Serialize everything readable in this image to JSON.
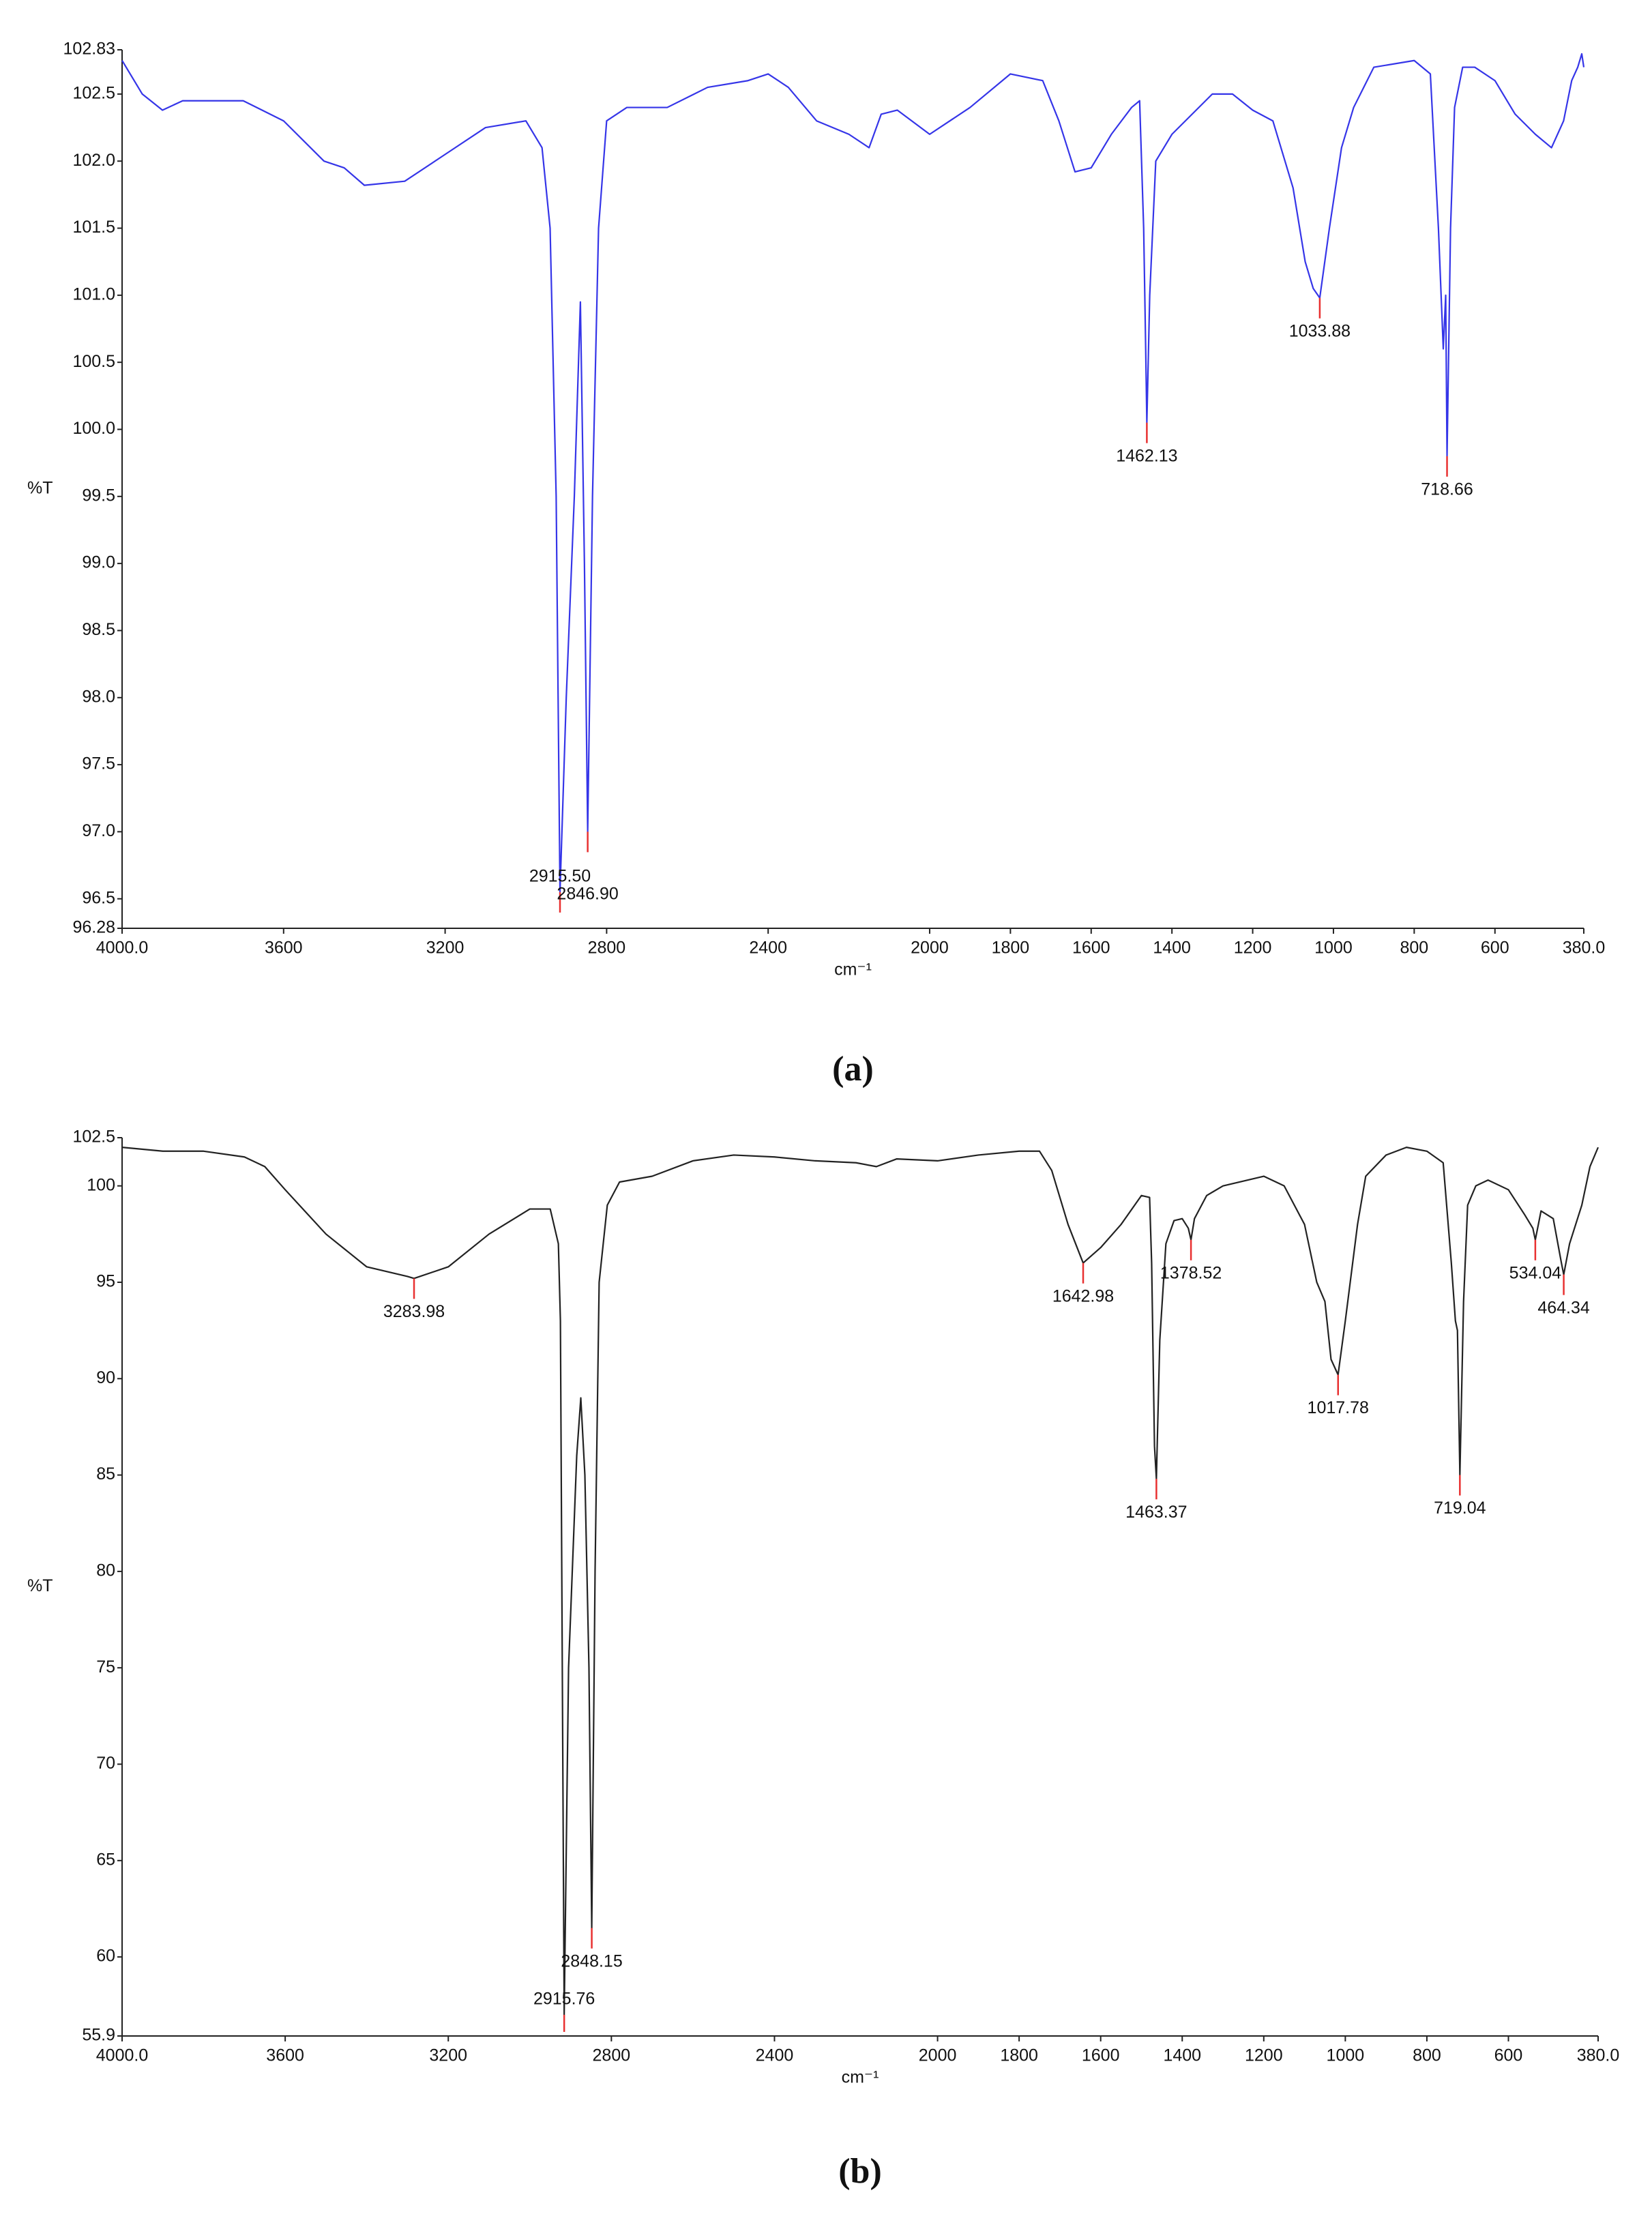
{
  "chart_data": [
    {
      "type": "line",
      "caption": "(a)",
      "x_label": "cm⁻¹",
      "y_label": "%T",
      "xlim": [
        4000,
        380
      ],
      "ylim": [
        96.28,
        102.83
      ],
      "xticks": [
        {
          "value": 4000,
          "label": "4000.0"
        },
        3600,
        3200,
        2800,
        2400,
        2000,
        1800,
        1600,
        1400,
        1200,
        1000,
        800,
        600,
        {
          "value": 380,
          "label": "380.0"
        }
      ],
      "yticks": [
        96.28,
        96.5,
        {
          "value": 97,
          "label": "97.0"
        },
        97.5,
        {
          "value": 98,
          "label": "98.0"
        },
        98.5,
        {
          "value": 99,
          "label": "99.0"
        },
        99.5,
        {
          "value": 100,
          "label": "100.0"
        },
        100.5,
        {
          "value": 101,
          "label": "101.0"
        },
        101.5,
        {
          "value": 102,
          "label": "102.0"
        },
        102.5,
        102.83
      ],
      "x": [
        4000,
        3950,
        3900,
        3850,
        3700,
        3600,
        3500,
        3450,
        3400,
        3300,
        3200,
        3100,
        3000,
        2960,
        2940,
        2925,
        2915.5,
        2900,
        2880,
        2865,
        2855,
        2846.9,
        2835,
        2820,
        2800,
        2750,
        2650,
        2550,
        2450,
        2400,
        2350,
        2280,
        2200,
        2150,
        2120,
        2080,
        2000,
        1900,
        1800,
        1720,
        1680,
        1640,
        1600,
        1550,
        1500,
        1480,
        1470,
        1465,
        1462.13,
        1455,
        1440,
        1400,
        1350,
        1300,
        1250,
        1200,
        1150,
        1100,
        1070,
        1050,
        1033.88,
        1010,
        980,
        950,
        900,
        800,
        760,
        740,
        728,
        722,
        718.66,
        710,
        700,
        680,
        650,
        600,
        550,
        500,
        460,
        430,
        410,
        395,
        385,
        380
      ],
      "series": [
        {
          "color": "#3535e8",
          "values": [
            102.75,
            102.5,
            102.38,
            102.45,
            102.45,
            102.3,
            102.0,
            101.95,
            101.82,
            101.85,
            102.05,
            102.25,
            102.3,
            102.1,
            101.5,
            99.5,
            96.55,
            98.0,
            99.5,
            100.95,
            99.0,
            97.0,
            99.5,
            101.5,
            102.3,
            102.4,
            102.4,
            102.55,
            102.6,
            102.65,
            102.55,
            102.3,
            102.2,
            102.1,
            102.35,
            102.38,
            102.2,
            102.4,
            102.65,
            102.6,
            102.3,
            101.92,
            101.95,
            102.2,
            102.4,
            102.45,
            101.5,
            100.6,
            100.05,
            101.0,
            102.0,
            102.2,
            102.35,
            102.5,
            102.5,
            102.38,
            102.3,
            101.8,
            101.25,
            101.05,
            100.98,
            101.5,
            102.1,
            102.4,
            102.7,
            102.75,
            102.65,
            101.5,
            100.6,
            101.0,
            99.8,
            101.5,
            102.4,
            102.7,
            102.7,
            102.6,
            102.35,
            102.2,
            102.1,
            102.3,
            102.6,
            102.7,
            102.8,
            102.7
          ]
        }
      ],
      "peak_color": "#e83030",
      "peaks": {
        "x": [
          2915.5,
          2846.9,
          1462.13,
          1033.88,
          718.66
        ],
        "labels": [
          "2915.50",
          "2846.90",
          "1462.13",
          "1033.88",
          "718.66"
        ]
      }
    },
    {
      "type": "line",
      "caption": "(b)",
      "x_label": "cm⁻¹",
      "y_label": "%T",
      "xlim": [
        4000,
        380
      ],
      "ylim": [
        55.9,
        102.5
      ],
      "xticks": [
        {
          "value": 4000,
          "label": "4000.0"
        },
        3600,
        3200,
        2800,
        2400,
        2000,
        1800,
        1600,
        1400,
        1200,
        1000,
        800,
        600,
        {
          "value": 380,
          "label": "380.0"
        }
      ],
      "yticks": [
        55.9,
        60,
        65,
        70,
        75,
        80,
        85,
        90,
        95,
        100,
        102.5
      ],
      "x": [
        4000,
        3900,
        3800,
        3700,
        3650,
        3600,
        3500,
        3400,
        3300,
        3283.98,
        3200,
        3100,
        3000,
        2950,
        2930,
        2925,
        2915.76,
        2905,
        2885,
        2875,
        2865,
        2855,
        2848.15,
        2840,
        2830,
        2810,
        2780,
        2700,
        2600,
        2500,
        2400,
        2300,
        2200,
        2150,
        2100,
        2000,
        1900,
        1800,
        1750,
        1720,
        1680,
        1642.98,
        1600,
        1550,
        1500,
        1480,
        1475,
        1468,
        1463.37,
        1455,
        1440,
        1420,
        1400,
        1385,
        1378.52,
        1370,
        1340,
        1300,
        1200,
        1150,
        1100,
        1070,
        1050,
        1035,
        1017.78,
        1000,
        970,
        950,
        900,
        850,
        800,
        760,
        740,
        730,
        725,
        719.04,
        710,
        700,
        680,
        650,
        600,
        560,
        540,
        534.04,
        520,
        490,
        470,
        464.34,
        450,
        420,
        400,
        380
      ],
      "series": [
        {
          "color": "#222222",
          "values": [
            102.0,
            101.8,
            101.8,
            101.5,
            101.0,
            99.8,
            97.5,
            95.8,
            95.3,
            95.2,
            95.8,
            97.5,
            98.8,
            98.8,
            97.0,
            93.0,
            57.0,
            75.0,
            86.0,
            89.0,
            85.0,
            75.0,
            61.5,
            80.0,
            95.0,
            99.0,
            100.2,
            100.5,
            101.3,
            101.6,
            101.5,
            101.3,
            101.2,
            101.0,
            101.4,
            101.3,
            101.6,
            101.8,
            101.8,
            100.8,
            98.0,
            96.0,
            96.8,
            98.0,
            99.5,
            99.4,
            96.0,
            86.5,
            84.8,
            92.0,
            97.0,
            98.2,
            98.3,
            97.8,
            97.2,
            98.3,
            99.5,
            100.0,
            100.5,
            100.0,
            98.0,
            95.0,
            94.0,
            91.0,
            90.2,
            93.0,
            98.0,
            100.5,
            101.6,
            102.0,
            101.8,
            101.2,
            96.0,
            93.0,
            92.5,
            85.0,
            94.0,
            99.0,
            100.0,
            100.3,
            99.8,
            98.5,
            97.8,
            97.2,
            98.7,
            98.3,
            96.0,
            95.4,
            97.0,
            99.0,
            101.0,
            102.0
          ]
        }
      ],
      "peak_color": "#e83030",
      "peaks": {
        "x": [
          3283.98,
          2915.76,
          2848.15,
          1642.98,
          1463.37,
          1378.52,
          1017.78,
          719.04,
          534.04,
          464.34
        ],
        "labels": [
          "3283.98",
          "2915.76",
          "2848.15",
          "1642.98",
          "1463.37",
          "1378.52",
          "1017.78",
          "719.04",
          "534.04",
          "464.34"
        ]
      }
    }
  ]
}
